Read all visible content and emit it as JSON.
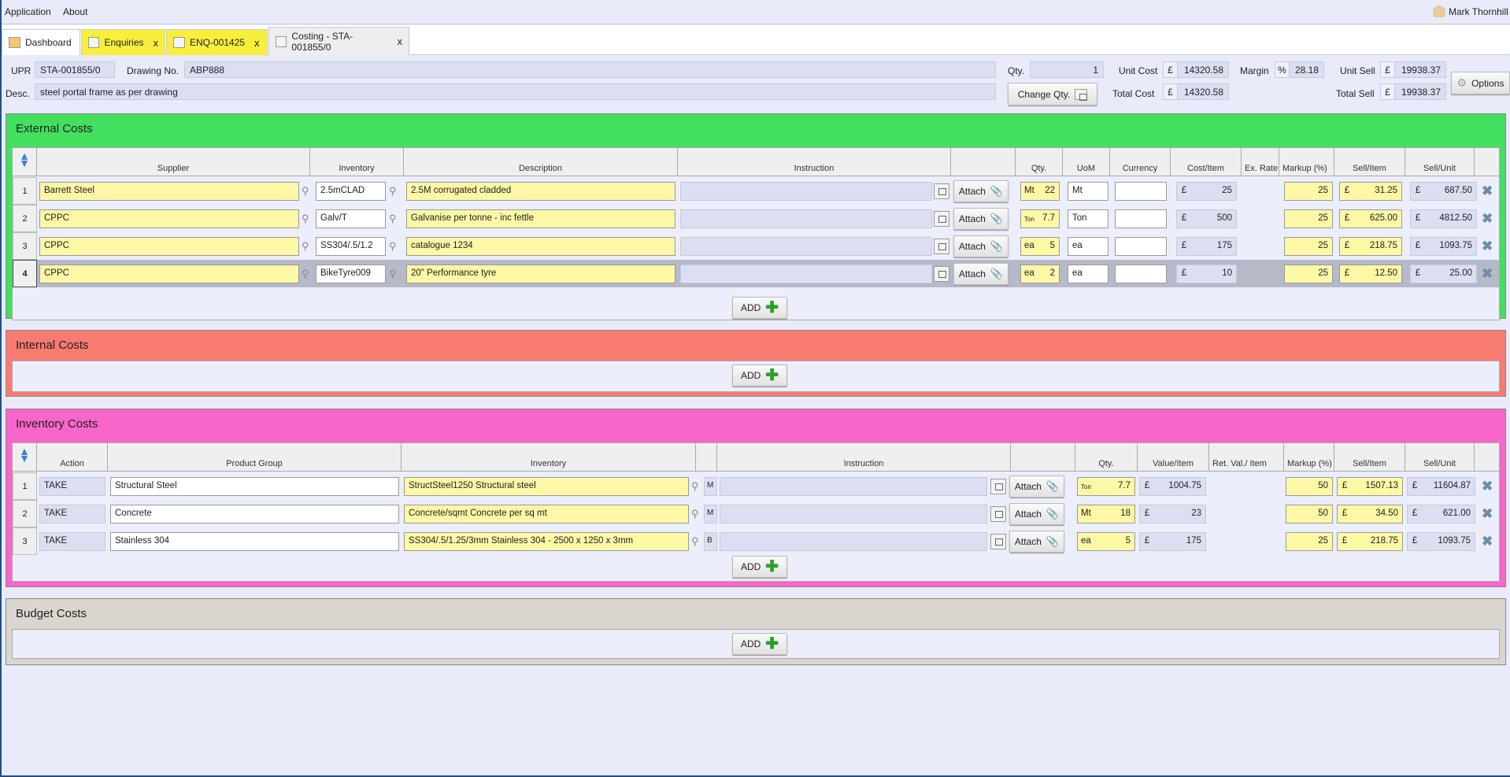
{
  "menu": {
    "items": [
      "Application",
      "About"
    ],
    "user": "Mark Thornhill"
  },
  "tabs": [
    {
      "label": "Dashboard",
      "closable": false,
      "color": "#ffffff"
    },
    {
      "label": "Enquiries",
      "closable": true,
      "color": "#f7ef3c"
    },
    {
      "label": "ENQ-001425",
      "closable": true,
      "color": "#f7ef3c"
    },
    {
      "label": "Costing - STA-001855/0",
      "closable": true,
      "color": "#eeeeee",
      "active": true
    }
  ],
  "close_glyph": "x",
  "currency_symbol": "£",
  "header": {
    "upr_label": "UPR",
    "upr": "STA-001855/0",
    "drawing_label": "Drawing No.",
    "drawing": "ABP888",
    "desc_label": "Desc.",
    "desc": "steel portal frame as per drawing",
    "qty_label": "Qty.",
    "qty": "1",
    "change_qty": "Change Qty.",
    "unit_cost_label": "Unit Cost",
    "unit_cost": "14320.58",
    "total_cost_label": "Total Cost",
    "total_cost": "14320.58",
    "margin_label": "Margin",
    "margin_symbol": "%",
    "margin": "28.18",
    "unit_sell_label": "Unit Sell",
    "unit_sell": "19938.37",
    "total_sell_label": "Total Sell",
    "total_sell": "19938.37",
    "options": "Options"
  },
  "add_label": "ADD",
  "attach_label": "Attach",
  "external": {
    "title": "External Costs",
    "color": "#43e05f",
    "columns": [
      "Supplier",
      "Inventory",
      "Description",
      "Instruction",
      "",
      "Qty.",
      "UoM",
      "Currency",
      "Cost/Item",
      "Ex. Rate",
      "Markup (%)",
      "Sell/Item",
      "Sell/Unit"
    ],
    "rows": [
      {
        "n": "1",
        "supplier": "Barrett Steel",
        "inventory": "2.5mCLAD",
        "description": "2.5M corrugated cladded",
        "instruction": "",
        "qty_unit": "Mt",
        "qty": "22",
        "uom": "Mt",
        "currency": "",
        "cost": "25",
        "ex_rate": "",
        "markup": "25",
        "sell_item": "31.25",
        "sell_unit": "687.50"
      },
      {
        "n": "2",
        "supplier": "CPPC",
        "inventory": "Galv/T",
        "description": "Galvanise per tonne - inc fettle",
        "instruction": "",
        "qty_unit": "Ton",
        "qty": "7.7",
        "uom": "Ton",
        "currency": "",
        "cost": "500",
        "ex_rate": "",
        "markup": "25",
        "sell_item": "625.00",
        "sell_unit": "4812.50"
      },
      {
        "n": "3",
        "supplier": "CPPC",
        "inventory": "SS304/.5/1.2",
        "description": "catalogue 1234",
        "instruction": "",
        "qty_unit": "ea",
        "qty": "5",
        "uom": "ea",
        "currency": "",
        "cost": "175",
        "ex_rate": "",
        "markup": "25",
        "sell_item": "218.75",
        "sell_unit": "1093.75"
      },
      {
        "n": "4",
        "supplier": "CPPC",
        "inventory": "BikeTyre009",
        "description": "20\" Performance tyre",
        "instruction": "",
        "qty_unit": "ea",
        "qty": "2",
        "uom": "ea",
        "currency": "",
        "cost": "10",
        "ex_rate": "",
        "markup": "25",
        "sell_item": "12.50",
        "sell_unit": "25.00",
        "selected": true
      }
    ]
  },
  "internal": {
    "title": "Internal Costs",
    "color": "#f87b72"
  },
  "inventory": {
    "title": "Inventory Costs",
    "color": "#f966c9",
    "columns": [
      "Action",
      "Product Group",
      "Inventory",
      "",
      "Instruction",
      "",
      "Qty.",
      "Value/Item",
      "Ret. Val./ Item",
      "Markup (%)",
      "Sell/Item",
      "Sell/Unit"
    ],
    "rows": [
      {
        "n": "1",
        "action": "TAKE",
        "group": "Structural Steel",
        "inventory": "StructSteel1250 Structural steel",
        "flag": "M",
        "instruction": "",
        "qty_unit": "Ton",
        "qty": "7.7",
        "value": "1004.75",
        "ret_val": "",
        "markup": "50",
        "sell_item": "1507.13",
        "sell_unit": "11604.87"
      },
      {
        "n": "2",
        "action": "TAKE",
        "group": "Concrete",
        "inventory": "Concrete/sqmt Concrete per sq mt",
        "flag": "M",
        "instruction": "",
        "qty_unit": "Mt",
        "qty": "18",
        "value": "23",
        "ret_val": "",
        "markup": "50",
        "sell_item": "34.50",
        "sell_unit": "621.00"
      },
      {
        "n": "3",
        "action": "TAKE",
        "group": "Stainless 304",
        "inventory": "SS304/.5/1.25/3mm Stainless 304 - 2500 x 1250 x 3mm",
        "flag": "B",
        "instruction": "",
        "qty_unit": "ea",
        "qty": "5",
        "value": "175",
        "ret_val": "",
        "markup": "25",
        "sell_item": "218.75",
        "sell_unit": "1093.75"
      }
    ]
  },
  "budget": {
    "title": "Budget Costs",
    "color": "#dad6cf"
  }
}
